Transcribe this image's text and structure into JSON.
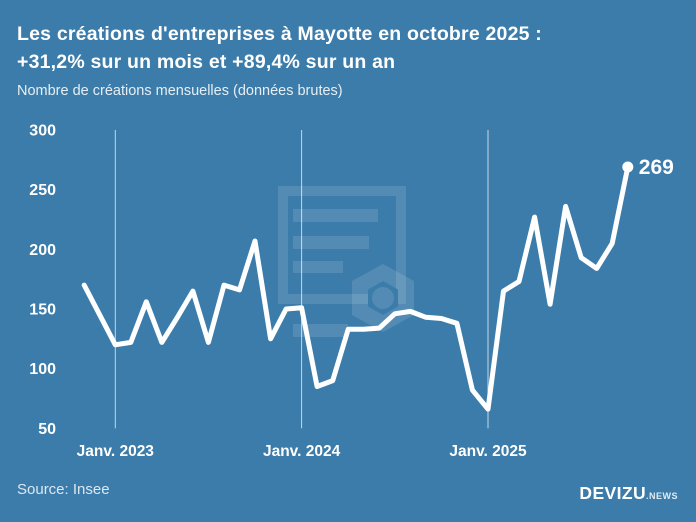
{
  "header": {
    "title_line1": "Les créations d'entreprises à Mayotte en octobre 2025 :",
    "title_line2": "+31,2% sur un mois et +89,4% sur un an",
    "subtitle": "Nombre de créations mensuelles (données brutes)"
  },
  "footer": {
    "source": "Source: Insee",
    "brand": "DEVIZU",
    "brand_suffix": ".NEWS"
  },
  "colors": {
    "background": "#3C7CAA",
    "line": "#ffffff",
    "text": "#ffffff",
    "grid": "rgba(255,255,255,0.7)",
    "watermark": "rgba(255,255,255,0.12)"
  },
  "chart_data": {
    "type": "line",
    "title": "Les créations d'entreprises à Mayotte en octobre 2025 : +31,2% sur un mois et +89,4% sur un an",
    "subtitle": "Nombre de créations mensuelles (données brutes)",
    "x": [
      "Nov. 2022",
      "Déc. 2022",
      "Janv. 2023",
      "Févr. 2023",
      "Mars 2023",
      "Avr. 2023",
      "Mai 2023",
      "Juin 2023",
      "Juil. 2023",
      "Août 2023",
      "Sept. 2023",
      "Oct. 2023",
      "Nov. 2023",
      "Déc. 2023",
      "Janv. 2024",
      "Févr. 2024",
      "Mars 2024",
      "Avr. 2024",
      "Mai 2024",
      "Juin 2024",
      "Juil. 2024",
      "Août 2024",
      "Sept. 2024",
      "Oct. 2024",
      "Nov. 2024",
      "Déc. 2024",
      "Janv. 2025",
      "Févr. 2025",
      "Mars 2025",
      "Avr. 2025",
      "Mai 2025",
      "Juin 2025",
      "Juil. 2025",
      "Août 2025",
      "Sept. 2025",
      "Oct. 2025"
    ],
    "values": [
      170,
      145,
      120,
      122,
      156,
      122,
      143,
      165,
      122,
      170,
      166,
      207,
      125,
      150,
      151,
      85,
      90,
      133,
      133,
      134,
      146,
      148,
      143,
      142,
      138,
      82,
      66,
      165,
      173,
      227,
      154,
      236,
      193,
      184,
      205,
      269
    ],
    "ylim": [
      50,
      300
    ],
    "yticks": [
      50,
      100,
      150,
      200,
      250,
      300
    ],
    "xticks": [
      {
        "label": "Janv. 2023",
        "index": 2
      },
      {
        "label": "Janv. 2024",
        "index": 14
      },
      {
        "label": "Janv. 2025",
        "index": 26
      }
    ],
    "grid": "vertical-only",
    "legend": "none",
    "line_color": "#ffffff",
    "end_label": {
      "text": "269",
      "index": 35
    }
  }
}
